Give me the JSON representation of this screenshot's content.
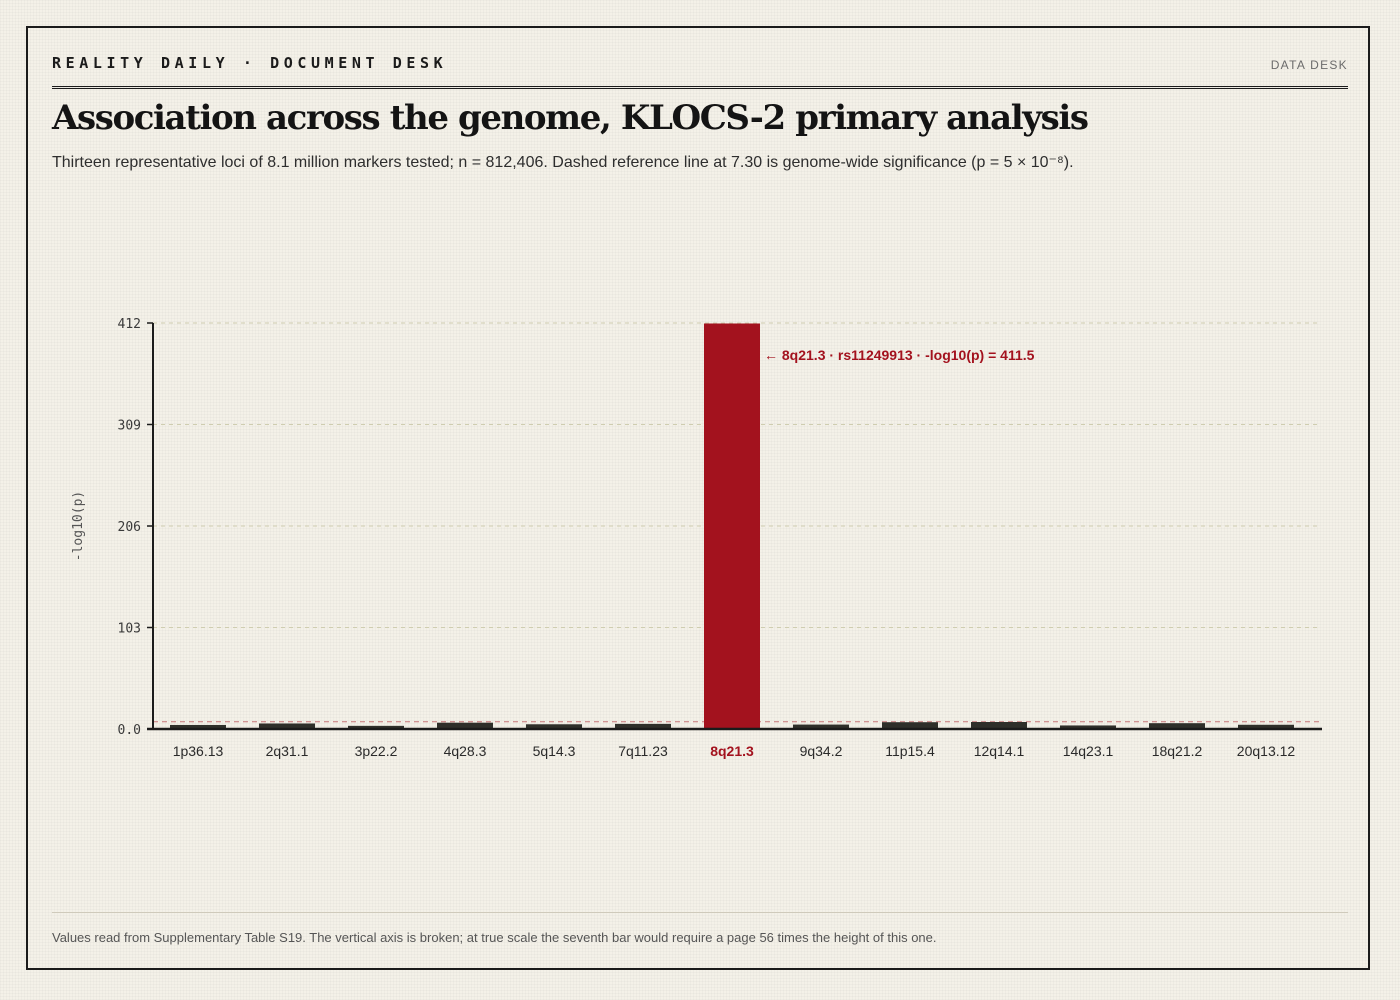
{
  "masthead": {
    "kicker": "REALITY DAILY · DOCUMENT DESK",
    "desk": "DATA DESK"
  },
  "headline": "Association across the genome, KLOCS-2 primary analysis",
  "dek": "Thirteen representative loci of 8.1 million markers tested; n = 812,406. Dashed reference line at 7.30 is genome-wide significance (p = 5 × 10⁻⁸).",
  "footnote": "Values read from Supplementary Table S19. The vertical axis is broken; at true scale the seventh bar would require a page 56 times the height of this one.",
  "colors": {
    "bar": "#2f2f2a",
    "highlight": "#a3121e",
    "axis": "#1b1b1b",
    "grid": "#cfcdb0"
  },
  "chart_data": {
    "type": "bar",
    "title": "Association across the genome, KLOCS-2 primary analysis",
    "ylabel": "-log10(p)",
    "xlabel": "",
    "categories": [
      "1p36.13",
      "2q31.1",
      "3p22.2",
      "4q28.3",
      "5q14.3",
      "7q11.23",
      "8q21.3",
      "9q34.2",
      "11p15.4",
      "12q14.1",
      "14q23.1",
      "18q21.2",
      "20q13.12"
    ],
    "values": [
      4.1,
      5.6,
      3.2,
      6.4,
      4.8,
      5.2,
      411.5,
      4.5,
      6.9,
      7.1,
      3.6,
      5.9,
      4.3
    ],
    "highlight_index": 6,
    "ylim": [
      0,
      412
    ],
    "yticks": [
      "0.0",
      "103",
      "206",
      "309",
      "412"
    ],
    "reference_line": 7.3,
    "grid": true,
    "annotation": "← 8q21.3 · rs11249913 · -log10(p) = 411.5"
  }
}
